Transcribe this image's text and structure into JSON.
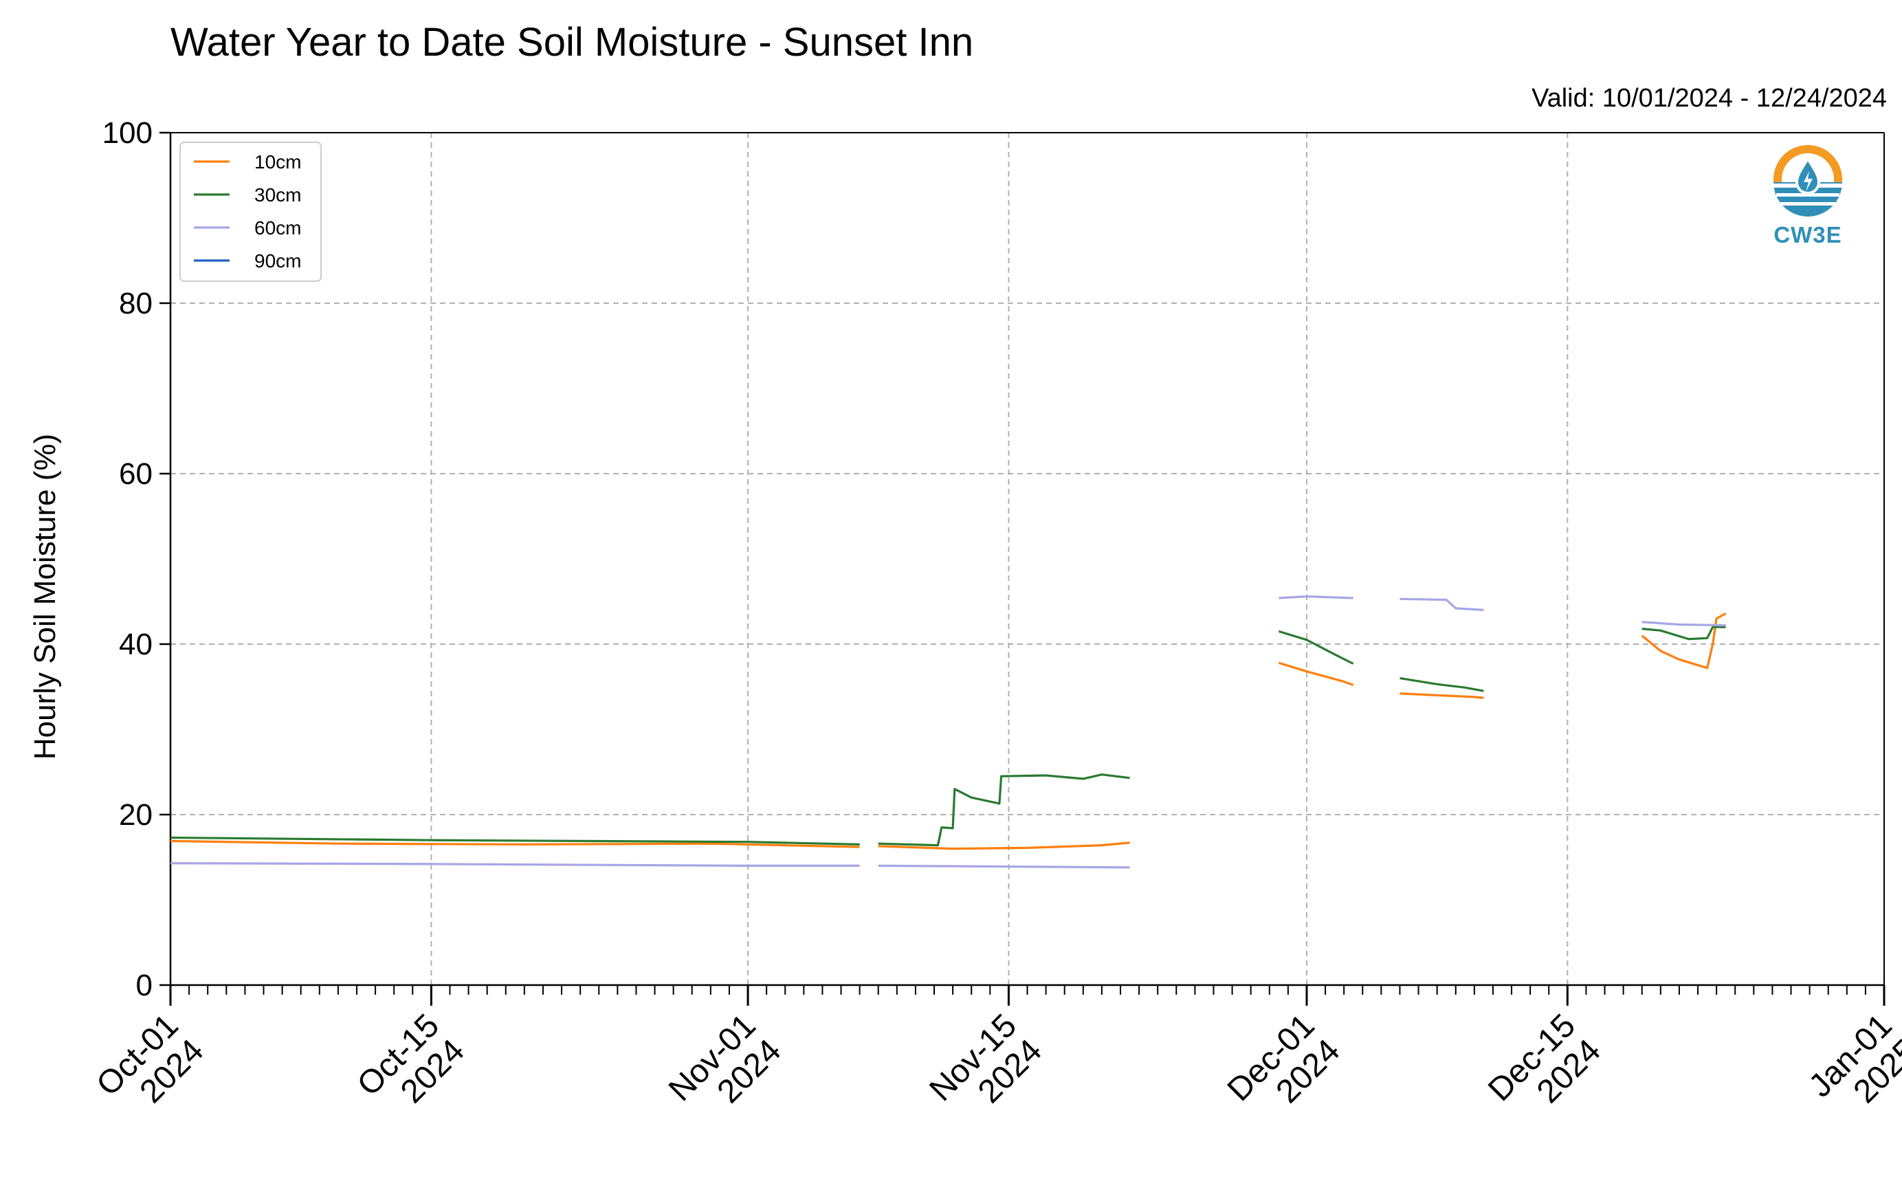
{
  "header": {
    "title": "Water Year to Date Soil Moisture - Sunset Inn",
    "valid": "Valid: 10/01/2024 - 12/24/2024"
  },
  "logo": {
    "text": "CW3E",
    "icon": "cw3e-water-drop-logo-icon"
  },
  "chart_data": {
    "type": "line",
    "title": "Water Year to Date Soil Moisture - Sunset Inn",
    "xlabel": "",
    "ylabel": "Hourly Soil Moisture (%)",
    "ylim": [
      0,
      100
    ],
    "xlim": [
      "2024-10-01",
      "2025-01-01"
    ],
    "grid": true,
    "legend_position": "upper-left",
    "yticks": [
      0,
      20,
      40,
      60,
      80,
      100
    ],
    "xticks": [
      {
        "date": "2024-10-01",
        "label": [
          "Oct-01",
          "2024"
        ]
      },
      {
        "date": "2024-10-15",
        "label": [
          "Oct-15",
          "2024"
        ]
      },
      {
        "date": "2024-11-01",
        "label": [
          "Nov-01",
          "2024"
        ]
      },
      {
        "date": "2024-11-15",
        "label": [
          "Nov-15",
          "2024"
        ]
      },
      {
        "date": "2024-12-01",
        "label": [
          "Dec-01",
          "2024"
        ]
      },
      {
        "date": "2024-12-15",
        "label": [
          "Dec-15",
          "2024"
        ]
      },
      {
        "date": "2025-01-01",
        "label": [
          "Jan-01",
          "2025"
        ]
      }
    ],
    "series": [
      {
        "name": "10cm",
        "color": "#ff7f0e",
        "segments": [
          [
            [
              "2024-10-01",
              16.9
            ],
            [
              "2024-10-10",
              16.6
            ],
            [
              "2024-10-20",
              16.5
            ],
            [
              "2024-10-30",
              16.6
            ],
            [
              "2024-11-07",
              16.2
            ]
          ],
          [
            [
              "2024-11-08",
              16.3
            ],
            [
              "2024-11-12",
              16.0
            ],
            [
              "2024-11-16",
              16.1
            ],
            [
              "2024-11-20",
              16.4
            ],
            [
              "2024-11-21.5",
              16.7
            ]
          ],
          [
            [
              "2024-11-29.5",
              37.8
            ],
            [
              "2024-12-01",
              36.8
            ],
            [
              "2024-12-03",
              35.6
            ],
            [
              "2024-12-03.5",
              35.2
            ]
          ],
          [
            [
              "2024-12-06",
              34.2
            ],
            [
              "2024-12-08",
              34.0
            ],
            [
              "2024-12-10",
              33.8
            ],
            [
              "2024-12-10.5",
              33.7
            ]
          ],
          [
            [
              "2024-12-19",
              41.0
            ],
            [
              "2024-12-20",
              39.2
            ],
            [
              "2024-12-21",
              38.2
            ],
            [
              "2024-12-22.5",
              37.2
            ],
            [
              "2024-12-22.8",
              40.0
            ],
            [
              "2024-12-23",
              43.0
            ],
            [
              "2024-12-23.5",
              43.6
            ]
          ]
        ]
      },
      {
        "name": "30cm",
        "color": "#2a7a30",
        "segments": [
          [
            [
              "2024-10-01",
              17.3
            ],
            [
              "2024-10-15",
              17.0
            ],
            [
              "2024-11-01",
              16.8
            ],
            [
              "2024-11-07",
              16.5
            ]
          ],
          [
            [
              "2024-11-08",
              16.6
            ],
            [
              "2024-11-11.2",
              16.4
            ],
            [
              "2024-11-11.4",
              18.5
            ],
            [
              "2024-11-12",
              18.4
            ],
            [
              "2024-11-12.1",
              23.0
            ],
            [
              "2024-11-13",
              22.0
            ],
            [
              "2024-11-14.5",
              21.3
            ],
            [
              "2024-11-14.6",
              24.5
            ],
            [
              "2024-11-17",
              24.6
            ],
            [
              "2024-11-19",
              24.2
            ],
            [
              "2024-11-20",
              24.7
            ],
            [
              "2024-11-21.5",
              24.3
            ]
          ],
          [
            [
              "2024-11-29.5",
              41.5
            ],
            [
              "2024-12-01",
              40.5
            ],
            [
              "2024-12-02.5",
              38.8
            ],
            [
              "2024-12-03.5",
              37.7
            ]
          ],
          [
            [
              "2024-12-06",
              36.0
            ],
            [
              "2024-12-08",
              35.3
            ],
            [
              "2024-12-09.5",
              34.9
            ],
            [
              "2024-12-10.5",
              34.5
            ]
          ],
          [
            [
              "2024-12-19",
              41.8
            ],
            [
              "2024-12-20",
              41.6
            ],
            [
              "2024-12-21.5",
              40.6
            ],
            [
              "2024-12-22.5",
              40.7
            ],
            [
              "2024-12-22.8",
              42.0
            ],
            [
              "2024-12-23.5",
              42.0
            ]
          ]
        ]
      },
      {
        "name": "60cm",
        "color": "#a6a6e6",
        "segments": [
          [
            [
              "2024-10-01",
              14.3
            ],
            [
              "2024-10-15",
              14.2
            ],
            [
              "2024-11-01",
              14.0
            ],
            [
              "2024-11-07",
              14.0
            ]
          ],
          [
            [
              "2024-11-08",
              14.0
            ],
            [
              "2024-11-15",
              13.9
            ],
            [
              "2024-11-21.5",
              13.8
            ]
          ],
          [
            [
              "2024-11-29.5",
              45.4
            ],
            [
              "2024-12-01",
              45.6
            ],
            [
              "2024-12-03.5",
              45.4
            ]
          ],
          [
            [
              "2024-12-06",
              45.3
            ],
            [
              "2024-12-08.5",
              45.2
            ],
            [
              "2024-12-09",
              44.2
            ],
            [
              "2024-12-10.5",
              44.0
            ]
          ],
          [
            [
              "2024-12-19",
              42.6
            ],
            [
              "2024-12-21",
              42.3
            ],
            [
              "2024-12-23.5",
              42.2
            ]
          ]
        ]
      },
      {
        "name": "90cm",
        "color": "#1f5fc4",
        "segments": []
      }
    ]
  }
}
